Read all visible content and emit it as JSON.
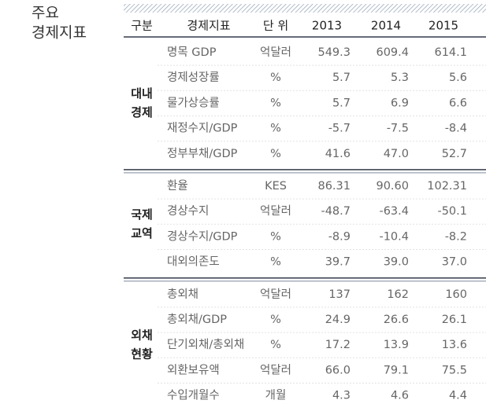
{
  "title": [
    "주요",
    "경제지표"
  ],
  "header": [
    "구분",
    "경제지표",
    "단 위",
    "2013",
    "2014",
    "2015"
  ],
  "groups": [
    {
      "label": [
        "대내",
        "경제"
      ],
      "rows": [
        [
          "명목 GDP",
          "억달러",
          "549.3",
          "609.4",
          "614.1"
        ],
        [
          "경제성장률",
          "%",
          "5.7",
          "5.3",
          "5.6"
        ],
        [
          "물가상승률",
          "%",
          "5.7",
          "6.9",
          "6.6"
        ],
        [
          "재정수지/GDP",
          "%",
          "-5.7",
          "-7.5",
          "-8.4"
        ],
        [
          "정부부채/GDP",
          "%",
          "41.6",
          "47.0",
          "52.7"
        ]
      ]
    },
    {
      "label": [
        "국제",
        "교역"
      ],
      "rows": [
        [
          "환율",
          "KES",
          "86.31",
          "90.60",
          "102.31"
        ],
        [
          "경상수지",
          "억달러",
          "-48.7",
          "-63.4",
          "-50.1"
        ],
        [
          "경상수지/GDP",
          "%",
          "-8.9",
          "-10.4",
          "-8.2"
        ],
        [
          "대외의존도",
          "%",
          "39.7",
          "39.0",
          "37.0"
        ]
      ]
    },
    {
      "label": [
        "외채",
        "현황"
      ],
      "rows": [
        [
          "총외채",
          "억달러",
          "137",
          "162",
          "160"
        ],
        [
          "총외채/GDP",
          "%",
          "24.9",
          "26.6",
          "26.1"
        ],
        [
          "단기외채/총외채",
          "%",
          "17.2",
          "13.9",
          "13.6"
        ],
        [
          "외환보유액",
          "억달러",
          "66.0",
          "79.1",
          "75.5"
        ],
        [
          "수입개월수",
          "개월",
          "4.3",
          "4.6",
          "4.4"
        ]
      ]
    }
  ]
}
